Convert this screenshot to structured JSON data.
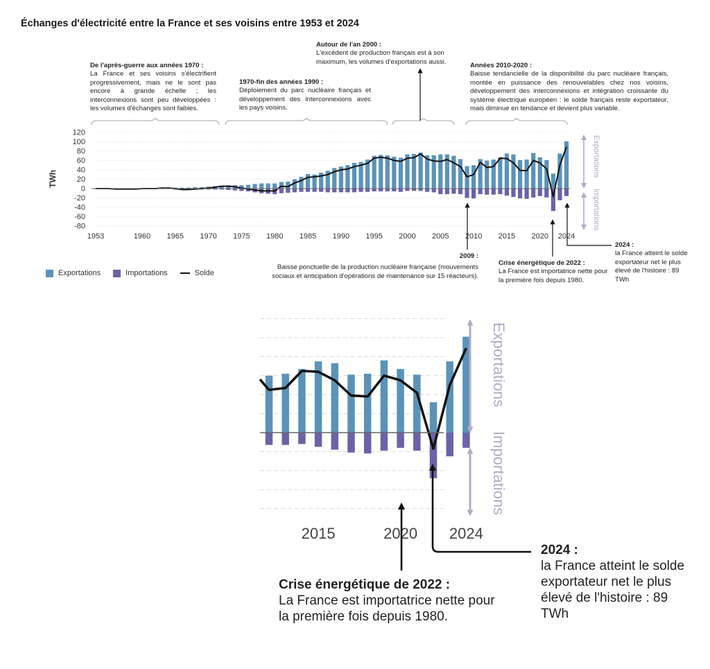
{
  "title": "Échanges d'électricité entre la France et ses voisins entre 1953 et 2024",
  "annotations": {
    "postwar": {
      "title": "De l'après-guerre aux années 1970 :",
      "body": "La France et ses voisins s'électrifient progressivement, mais ne le sont pas encore à grande échelle ; les interconnexions sont peu développées : les volumes d'échanges sont faibles."
    },
    "seventies": {
      "title": "1970-fin des années 1990 :",
      "body": "Déploiement du parc nucléaire français et développement des interconnexions avec les pays voisins."
    },
    "y2000": {
      "title": "Autour de l'an 2000 :",
      "body": "L'excédent de production français est à son maximum, les volumes d'exportations aussi."
    },
    "y2010s": {
      "title": "Années 2010-2020 :",
      "body": "Baisse tendancielle de la disponibilité du parc nucléaire français, montée en puissance des renouvelables chez nos voisins, développement des interconnexions et intégration croissante du système électrique européen : le solde français reste exportateur, mais diminue en tendance et devient plus variable."
    },
    "y2009": {
      "title": "2009 :",
      "body": "Baisse ponctuelle de la production nucléaire française (mouvements sociaux et anticipation d'opérations de maintenance sur 15 réacteurs)."
    },
    "y2022": {
      "title": "Crise énergétique de 2022 :",
      "body": "La France est importatrice nette pour la première fois depuis 1980."
    },
    "y2024": {
      "title": "2024 :",
      "body": "la France atteint le solde exportateur net le plus élevé de l'histoire : 89 TWh"
    }
  },
  "legend": {
    "exports": "Exportations",
    "imports": "Importations",
    "balance": "Solde"
  },
  "colors": {
    "exports": "#5b93b8",
    "imports": "#6a63a8",
    "balance": "#111111",
    "arrow": "#b0abc8",
    "grid": "#d8d8d8",
    "axis": "#666666"
  },
  "side_labels": {
    "exports": "Exportations",
    "imports": "Importations"
  },
  "chart_data": {
    "type": "bar",
    "ylabel": "TWh",
    "ylim": [
      -80,
      120
    ],
    "yticks": [
      120,
      100,
      80,
      60,
      40,
      20,
      0,
      -20,
      -40,
      -60,
      -80
    ],
    "xticks": [
      1953,
      1960,
      1965,
      1970,
      1975,
      1980,
      1985,
      1990,
      1995,
      2000,
      2005,
      2010,
      2015,
      2020,
      2024
    ],
    "x": [
      1953,
      1954,
      1955,
      1956,
      1957,
      1958,
      1959,
      1960,
      1961,
      1962,
      1963,
      1964,
      1965,
      1966,
      1967,
      1968,
      1969,
      1970,
      1971,
      1972,
      1973,
      1974,
      1975,
      1976,
      1977,
      1978,
      1979,
      1980,
      1981,
      1982,
      1983,
      1984,
      1985,
      1986,
      1987,
      1988,
      1989,
      1990,
      1991,
      1992,
      1993,
      1994,
      1995,
      1996,
      1997,
      1998,
      1999,
      2000,
      2001,
      2002,
      2003,
      2004,
      2005,
      2006,
      2007,
      2008,
      2009,
      2010,
      2011,
      2012,
      2013,
      2014,
      2015,
      2016,
      2017,
      2018,
      2019,
      2020,
      2021,
      2022,
      2023,
      2024
    ],
    "series": [
      {
        "name": "Exportations",
        "values": [
          1,
          1,
          1,
          1,
          1,
          1,
          1,
          1,
          1,
          1,
          2,
          2,
          2,
          2,
          2,
          3,
          3,
          4,
          5,
          6,
          7,
          7,
          7,
          8,
          10,
          11,
          11,
          11,
          14,
          15,
          20,
          25,
          31,
          30,
          34,
          38,
          44,
          47,
          50,
          55,
          57,
          62,
          70,
          72,
          71,
          68,
          66,
          73,
          74,
          77,
          71,
          71,
          73,
          73,
          70,
          63,
          48,
          50,
          63,
          60,
          62,
          67,
          75,
          73,
          61,
          62,
          76,
          67,
          61,
          32,
          75,
          101
        ]
      },
      {
        "name": "Importations",
        "values": [
          -1,
          -1,
          -1,
          -1,
          -1,
          -1,
          -1,
          -1,
          -1,
          -1,
          -1,
          -1,
          -2,
          -2,
          -2,
          -2,
          -2,
          -2,
          -2,
          -2,
          -3,
          -4,
          -5,
          -6,
          -8,
          -10,
          -11,
          -12,
          -10,
          -9,
          -8,
          -7,
          -7,
          -7,
          -7,
          -8,
          -8,
          -8,
          -8,
          -8,
          -7,
          -7,
          -6,
          -6,
          -6,
          -6,
          -7,
          -5,
          -5,
          -5,
          -7,
          -8,
          -12,
          -12,
          -11,
          -12,
          -20,
          -21,
          -12,
          -13,
          -13,
          -12,
          -15,
          -18,
          -21,
          -22,
          -19,
          -16,
          -19,
          -48,
          -25,
          -16
        ]
      },
      {
        "name": "Solde",
        "values": [
          0,
          0,
          0,
          -1,
          -1,
          -1,
          -1,
          0,
          0,
          0,
          1,
          1,
          0,
          -2,
          -2,
          -1,
          0,
          1,
          3,
          5,
          5,
          4,
          1,
          -1,
          -3,
          -5,
          -5,
          -5,
          5,
          4,
          12,
          17,
          24,
          25,
          27,
          30,
          36,
          40,
          42,
          47,
          50,
          54,
          65,
          67,
          65,
          60,
          58,
          65,
          66,
          74,
          63,
          59,
          58,
          62,
          55,
          47,
          25,
          30,
          56,
          45,
          47,
          65,
          64,
          55,
          39,
          38,
          60,
          55,
          42,
          -17,
          50,
          89
        ]
      }
    ]
  },
  "chart_zoom": {
    "type": "bar",
    "xticks": [
      2015,
      2020,
      2024
    ],
    "start_year": 2012
  }
}
